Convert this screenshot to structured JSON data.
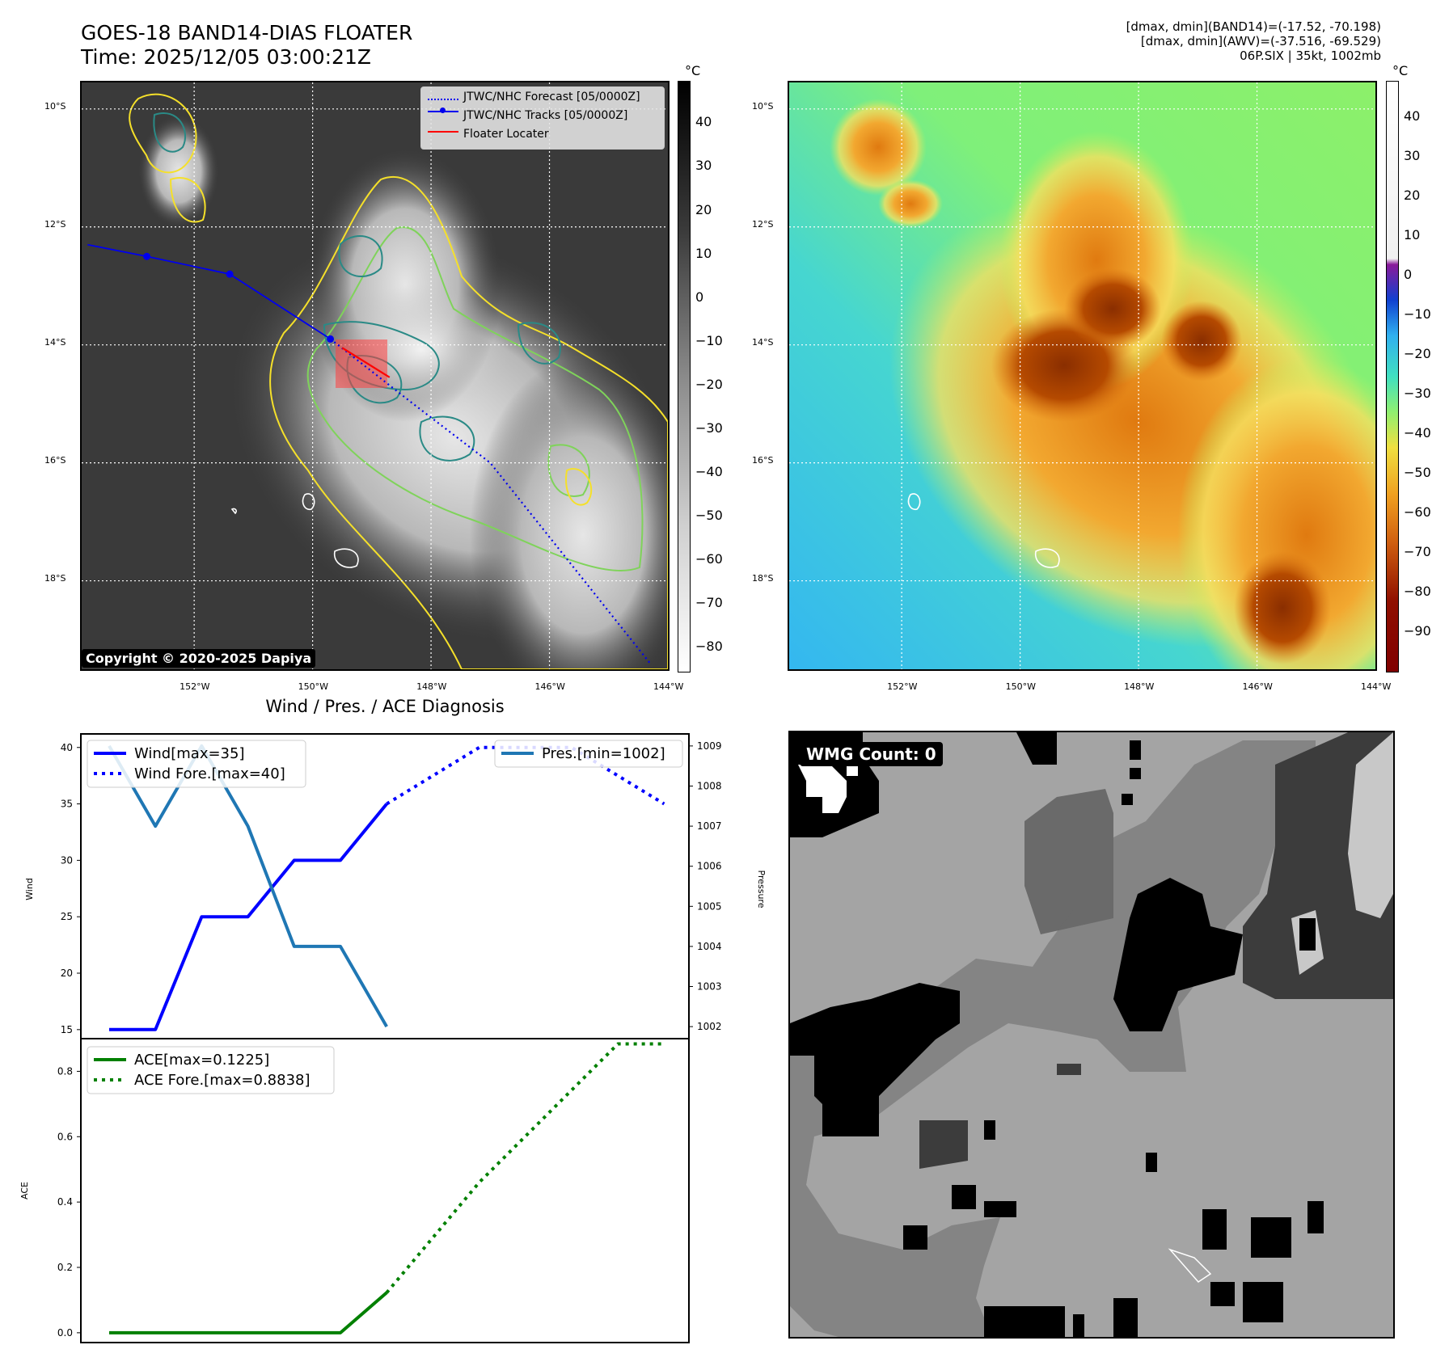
{
  "header": {
    "title_line1": "GOES-18 BAND14-DIAS FLOATER",
    "title_line2": "Time: 2025/12/05 03:00:21Z",
    "info_line1": "[dmax, dmin](BAND14)=(-17.52, -70.198)",
    "info_line2": "[dmax, dmin](AWV)=(-37.516, -69.529)",
    "info_line3": "06P.SIX | 35kt, 1002mb"
  },
  "colors": {
    "forecast": "#0000ee",
    "track": "#0000ee",
    "locater": "#ff0000",
    "wind": "#0000ff",
    "pressure": "#1f77b4",
    "ace": "#008000",
    "contour_yellow": "#f5e02a",
    "contour_green": "#7fd35a",
    "contour_teal": "#2a8a86"
  },
  "map_left": {
    "lat_labels": [
      "10°S",
      "12°S",
      "14°S",
      "16°S",
      "18°S"
    ],
    "lon_labels": [
      "152°W",
      "150°W",
      "148°W",
      "146°W",
      "144°W"
    ],
    "legend": [
      "JTWC/NHC Forecast [05/0000Z]",
      "JTWC/NHC Tracks [05/0000Z]",
      "Floater Locater"
    ],
    "copyright": "Copyright © 2020-2025 Dapiya",
    "colorbar_unit": "°C",
    "colorbar_ticks": [
      "40",
      "30",
      "20",
      "10",
      "0",
      "−10",
      "−20",
      "−30",
      "−40",
      "−50",
      "−60",
      "−70",
      "−80"
    ],
    "track_points": [
      [
        -153.8,
        -12.3
      ],
      [
        -152.8,
        -12.5
      ],
      [
        -151.4,
        -12.8
      ],
      [
        -149.7,
        -13.9
      ]
    ],
    "forecast_points": [
      [
        -149.7,
        -13.9
      ],
      [
        -148.3,
        -15.0
      ],
      [
        -147.0,
        -16.0
      ],
      [
        -144.3,
        -19.4
      ]
    ]
  },
  "map_right": {
    "lat_labels": [
      "10°S",
      "12°S",
      "14°S",
      "16°S",
      "18°S"
    ],
    "lon_labels": [
      "152°W",
      "150°W",
      "148°W",
      "146°W",
      "144°W"
    ],
    "colorbar_unit": "°C",
    "colorbar_ticks": [
      "40",
      "30",
      "20",
      "10",
      "0",
      "−10",
      "−20",
      "−30",
      "−40",
      "−50",
      "−60",
      "−70",
      "−80",
      "−90"
    ]
  },
  "wmg": {
    "label": "WMG Count: 0"
  },
  "chart_data": [
    {
      "type": "line",
      "title": "Wind / Pres. / ACE Diagnosis",
      "ylabel": "Wind",
      "ylabel_right": "Pressure",
      "ylim": [
        14.2,
        41.2
      ],
      "ylim_right": [
        1001.7,
        1009.3
      ],
      "x": [
        0,
        1,
        2,
        3,
        4,
        5,
        6,
        7,
        8,
        9,
        10,
        11,
        12
      ],
      "yticks": [
        "15",
        "20",
        "25",
        "30",
        "35",
        "40"
      ],
      "yticks_right": [
        "1002",
        "1003",
        "1004",
        "1005",
        "1006",
        "1007",
        "1008",
        "1009"
      ],
      "series": [
        {
          "name": "Wind[max=35]",
          "style": "solid",
          "x": [
            0,
            1,
            2,
            3,
            4,
            5,
            6
          ],
          "values": [
            15,
            15,
            25,
            25,
            30,
            30,
            35
          ]
        },
        {
          "name": "Wind Fore.[max=40]",
          "style": "dotted",
          "x": [
            6,
            8,
            10,
            12
          ],
          "values": [
            35,
            40,
            40,
            35
          ]
        },
        {
          "name": "Pres.[min=1002]",
          "style": "solid",
          "axis": "right",
          "x": [
            0,
            1,
            2,
            3,
            4,
            5,
            6
          ],
          "values": [
            1009,
            1007,
            1009,
            1007,
            1004,
            1004,
            1002
          ]
        }
      ]
    },
    {
      "type": "line",
      "ylabel": "ACE",
      "ylim": [
        -0.03,
        0.9
      ],
      "yticks": [
        "0.0",
        "0.2",
        "0.4",
        "0.6",
        "0.8"
      ],
      "series": [
        {
          "name": "ACE[max=0.1225]",
          "style": "solid",
          "x": [
            0,
            1,
            2,
            3,
            4,
            5,
            6
          ],
          "values": [
            0,
            0,
            0,
            0,
            0,
            0,
            0.1225
          ]
        },
        {
          "name": "ACE Fore.[max=0.8838]",
          "style": "dotted",
          "x": [
            6,
            8,
            11,
            12
          ],
          "values": [
            0.1225,
            0.46,
            0.8838,
            0.8838
          ]
        }
      ]
    }
  ]
}
